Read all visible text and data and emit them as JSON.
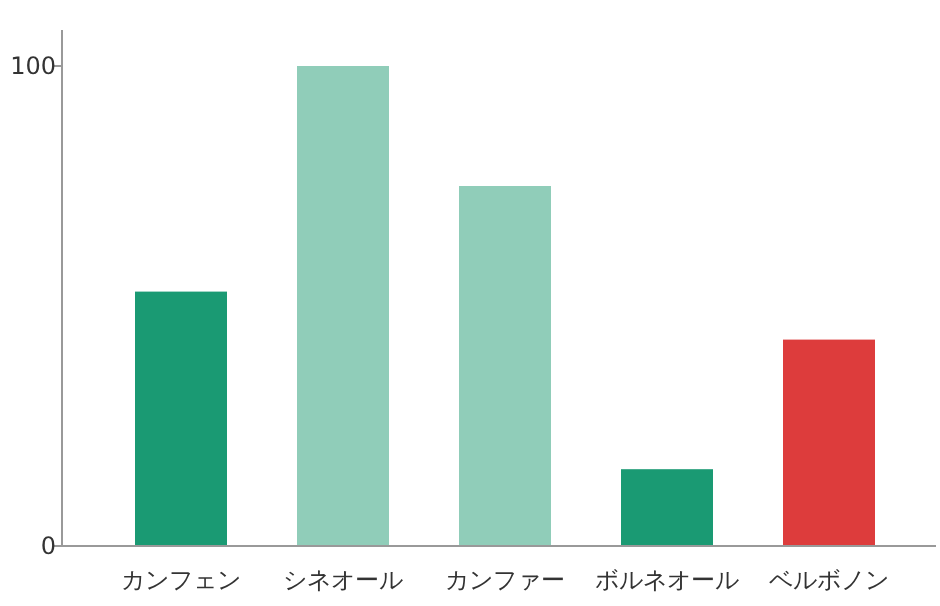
{
  "chart_data": {
    "type": "bar",
    "categories": [
      "カンフェン",
      "シネオール",
      "カンファー",
      "ボルネオール",
      "ベルボノン"
    ],
    "values": [
      53,
      100,
      75,
      16,
      43
    ],
    "colors": [
      "#1a9a73",
      "#90cdb9",
      "#90cdb9",
      "#1a9a73",
      "#dd3c3c"
    ],
    "ylim": [
      0,
      100
    ],
    "yticks": [
      0,
      100
    ]
  }
}
